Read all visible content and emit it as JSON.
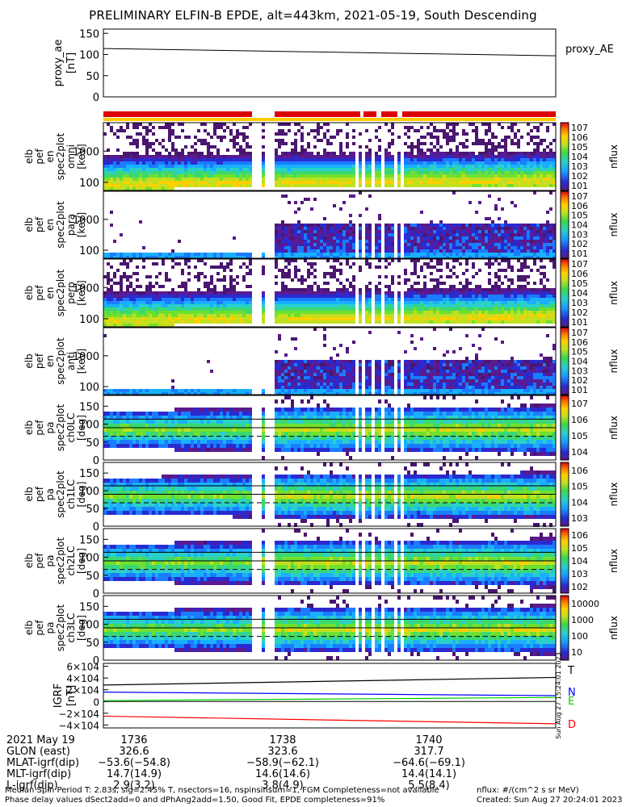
{
  "title": "PRELIMINARY ELFIN-B EPDE, alt=443km, 2021-05-19, South Descending",
  "chart_data": [
    {
      "type": "line",
      "panel": "proxy_ae",
      "ylabel_lines": [
        "proxy_ae",
        "[nT]"
      ],
      "legend": "proxy_AE",
      "yticks": [
        "0",
        "50",
        "100",
        "150"
      ],
      "ylim": [
        0,
        160
      ],
      "series": [
        {
          "x_fraction": [
            0,
            1
          ],
          "values": [
            114,
            97
          ],
          "color": "#000000"
        }
      ]
    },
    {
      "type": "heatmap",
      "panel": "energy_spectrum_1",
      "ylabel_lines": [
        "elb",
        "pef",
        "en",
        "spec2plot",
        "omni",
        "[keV]"
      ],
      "yticks": [
        "100",
        "1000"
      ],
      "yscale": "log",
      "colorbar_label": "nflux",
      "colorbar_ticks": [
        "101",
        "102",
        "103",
        "104",
        "105",
        "106",
        "107"
      ],
      "profile": "omni"
    },
    {
      "type": "heatmap",
      "panel": "energy_spectrum_2",
      "ylabel_lines": [
        "elb",
        "pef",
        "en",
        "spec2plot",
        "para",
        "[keV]"
      ],
      "yticks": [
        "100",
        "1000"
      ],
      "yscale": "log",
      "colorbar_label": "nflux",
      "colorbar_ticks": [
        "101",
        "102",
        "103",
        "104",
        "105",
        "106",
        "107"
      ],
      "profile": "sparse"
    },
    {
      "type": "heatmap",
      "panel": "energy_spectrum_3",
      "ylabel_lines": [
        "elb",
        "pef",
        "en",
        "spec2plot",
        "perp",
        "[keV]"
      ],
      "yticks": [
        "100",
        "1000"
      ],
      "yscale": "log",
      "colorbar_label": "nflux",
      "colorbar_ticks": [
        "101",
        "102",
        "103",
        "104",
        "105",
        "106",
        "107"
      ],
      "profile": "omni"
    },
    {
      "type": "heatmap",
      "panel": "energy_spectrum_4",
      "ylabel_lines": [
        "elb",
        "pef",
        "en",
        "spec2plot",
        "anti",
        "[keV]"
      ],
      "yticks": [
        "100",
        "1000"
      ],
      "yscale": "log",
      "colorbar_label": "nflux",
      "colorbar_ticks": [
        "101",
        "102",
        "103",
        "104",
        "105",
        "106",
        "107"
      ],
      "profile": "sparse"
    },
    {
      "type": "heatmap",
      "panel": "pitch_angle_ch0",
      "ylabel_lines": [
        "elb",
        "pef",
        "pa",
        "spec2plot",
        "ch0LC",
        "[deg]"
      ],
      "yticks": [
        "0",
        "50",
        "100",
        "150"
      ],
      "ylim": [
        0,
        180
      ],
      "colorbar_label": "nflux",
      "colorbar_ticks": [
        "104",
        "105",
        "106",
        "107"
      ],
      "profile": "pa"
    },
    {
      "type": "heatmap",
      "panel": "pitch_angle_ch1",
      "ylabel_lines": [
        "elb",
        "pef",
        "pa",
        "spec2plot",
        "ch1LC",
        "[deg]"
      ],
      "yticks": [
        "0",
        "50",
        "100",
        "150"
      ],
      "ylim": [
        0,
        180
      ],
      "colorbar_label": "nflux",
      "colorbar_ticks": [
        "103",
        "104",
        "105",
        "106"
      ],
      "profile": "pa"
    },
    {
      "type": "heatmap",
      "panel": "pitch_angle_ch2",
      "ylabel_lines": [
        "elb",
        "pef",
        "pa",
        "spec2plot",
        "ch2LC",
        "[deg]"
      ],
      "yticks": [
        "0",
        "50",
        "100",
        "150"
      ],
      "ylim": [
        0,
        180
      ],
      "colorbar_label": "nflux",
      "colorbar_ticks": [
        "102",
        "103",
        "104",
        "105",
        "106"
      ],
      "profile": "pa"
    },
    {
      "type": "heatmap",
      "panel": "pitch_angle_ch3",
      "ylabel_lines": [
        "elb",
        "pef",
        "pa",
        "spec2plot",
        "ch3LC",
        "[deg]"
      ],
      "yticks": [
        "0",
        "50",
        "100",
        "150"
      ],
      "ylim": [
        0,
        180
      ],
      "colorbar_label": "nflux",
      "colorbar_ticks": [
        "10",
        "100",
        "1000",
        "10000"
      ],
      "profile": "pa"
    },
    {
      "type": "line",
      "panel": "igrf",
      "ylabel_lines": [
        "IGRF",
        "[nT]"
      ],
      "yticks": [
        "−4×104",
        "−2×104",
        "0",
        "2×104",
        "4×104",
        "6×104"
      ],
      "ylim": [
        -45000,
        65000
      ],
      "series": [
        {
          "name": "T",
          "color": "#000000",
          "x_fraction": [
            0,
            1
          ],
          "values": [
            28000,
            41000
          ]
        },
        {
          "name": "N",
          "color": "#0000ff",
          "x_fraction": [
            0,
            1
          ],
          "values": [
            16000,
            10000
          ]
        },
        {
          "name": "E",
          "color": "#00cc00",
          "x_fraction": [
            0,
            1
          ],
          "values": [
            1500,
            7000
          ]
        },
        {
          "name": "D",
          "color": "#ff0000",
          "x_fraction": [
            0,
            1
          ],
          "values": [
            -25000,
            -38000
          ]
        }
      ],
      "side_stamp": "Sun Aug 27 15:24:01 2023"
    }
  ],
  "time_axis": {
    "date_label": "2021 May 19",
    "rows": [
      {
        "label": "GLON (east)",
        "values": [
          "326.6",
          "323.6",
          "317.7"
        ]
      },
      {
        "label": "MLAT-igrf(dip)",
        "values": [
          "−53.6(−54.8)",
          "−58.9(−62.1)",
          "−64.6(−69.1)"
        ]
      },
      {
        "label": "MLT-igrf(dip)",
        "values": [
          "14.7(14.9)",
          "14.6(14.6)",
          "14.4(14.1)"
        ]
      },
      {
        "label": "L-igrf(dip)",
        "values": [
          "2.9(3.2)",
          "3.8(4.9)",
          "5.5(8.4)"
        ]
      }
    ],
    "ticks": [
      "1736",
      "1738",
      "1740"
    ]
  },
  "footer": {
    "line1": "Median Spin Period T: 2.83s, sig=2.45% T, nsectors=16, nspinsinsum=1, FGM Completeness=not available",
    "line2": "Phase delay values dSect2add=0 and dPhAng2add=1.50, Good Fit, EPDE completeness=91%",
    "flux_units": "nflux: #/(cm^2 s sr MeV)",
    "created": "Created: Sun Aug 27 20:24:01 2023"
  },
  "colors": {
    "state_bar": "#dd0000",
    "state_bar_2": "#ffcc00"
  }
}
